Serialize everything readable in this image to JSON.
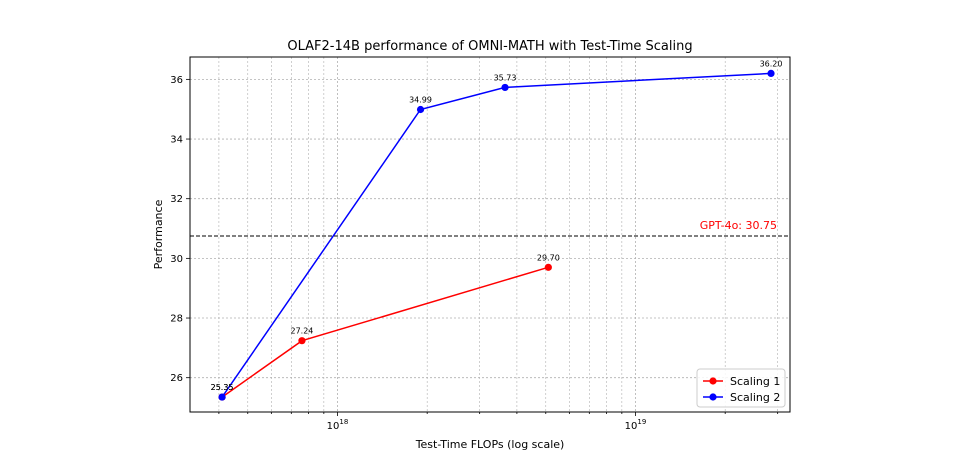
{
  "chart_data": {
    "type": "line",
    "title": "OLAF2-14B performance of OMNI-MATH with Test-Time Scaling",
    "xlabel": "Test-Time FLOPs (log scale)",
    "ylabel": "Performance",
    "xscale": "log",
    "xlim": [
      3.2e+17,
      3.3e+19
    ],
    "ylim": [
      24.85,
      36.75
    ],
    "yticks": [
      26,
      28,
      30,
      32,
      34,
      36
    ],
    "xticks": [
      {
        "value": 1e+18,
        "base": "10",
        "exp": "18"
      },
      {
        "value": 1e+19,
        "base": "10",
        "exp": "19"
      }
    ],
    "grid": true,
    "legend_position": "lower-right",
    "series": [
      {
        "name": "Scaling 1",
        "color": "#ff0000",
        "x": [
          4.1e+17,
          7.6e+17,
          5.1e+18
        ],
        "y": [
          25.35,
          27.24,
          29.7
        ],
        "labels": [
          "25.35",
          "27.24",
          "29.70"
        ]
      },
      {
        "name": "Scaling 2",
        "color": "#0000ff",
        "x": [
          4.1e+17,
          1.9e+18,
          3.65e+18,
          2.85e+19
        ],
        "y": [
          25.35,
          34.99,
          35.73,
          36.2
        ],
        "labels": [
          "25.35",
          "34.99",
          "35.73",
          "36.20"
        ]
      }
    ],
    "reference_line": {
      "value": 30.75,
      "label": "GPT-4o: 30.75",
      "color": "#ff0000",
      "line_color": "#000000"
    }
  }
}
